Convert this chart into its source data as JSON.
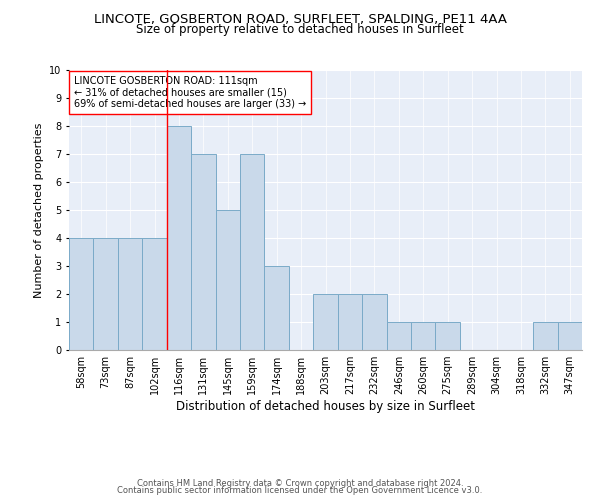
{
  "title": "LINCOTE, GOSBERTON ROAD, SURFLEET, SPALDING, PE11 4AA",
  "subtitle": "Size of property relative to detached houses in Surfleet",
  "xlabel": "Distribution of detached houses by size in Surfleet",
  "ylabel": "Number of detached properties",
  "categories": [
    "58sqm",
    "73sqm",
    "87sqm",
    "102sqm",
    "116sqm",
    "131sqm",
    "145sqm",
    "159sqm",
    "174sqm",
    "188sqm",
    "203sqm",
    "217sqm",
    "232sqm",
    "246sqm",
    "260sqm",
    "275sqm",
    "289sqm",
    "304sqm",
    "318sqm",
    "332sqm",
    "347sqm"
  ],
  "values": [
    4,
    4,
    4,
    4,
    8,
    7,
    5,
    7,
    3,
    0,
    2,
    2,
    2,
    1,
    1,
    1,
    0,
    0,
    0,
    1,
    1
  ],
  "bar_color": "#c9d9ea",
  "bar_edge_color": "#7aaac8",
  "bar_linewidth": 0.7,
  "annotation_text": "LINCOTE GOSBERTON ROAD: 111sqm\n← 31% of detached houses are smaller (15)\n69% of semi-detached houses are larger (33) →",
  "annotation_box_color": "white",
  "annotation_box_edge": "red",
  "red_line_index": 3.5,
  "ylim": [
    0,
    10
  ],
  "yticks": [
    0,
    1,
    2,
    3,
    4,
    5,
    6,
    7,
    8,
    9,
    10
  ],
  "background_color": "#e8eef8",
  "grid_color": "white",
  "footer_line1": "Contains HM Land Registry data © Crown copyright and database right 2024.",
  "footer_line2": "Contains public sector information licensed under the Open Government Licence v3.0.",
  "title_fontsize": 9.5,
  "subtitle_fontsize": 8.5,
  "xlabel_fontsize": 8.5,
  "ylabel_fontsize": 8.0,
  "tick_fontsize": 7.0,
  "annotation_fontsize": 7.0,
  "footer_fontsize": 6.0
}
